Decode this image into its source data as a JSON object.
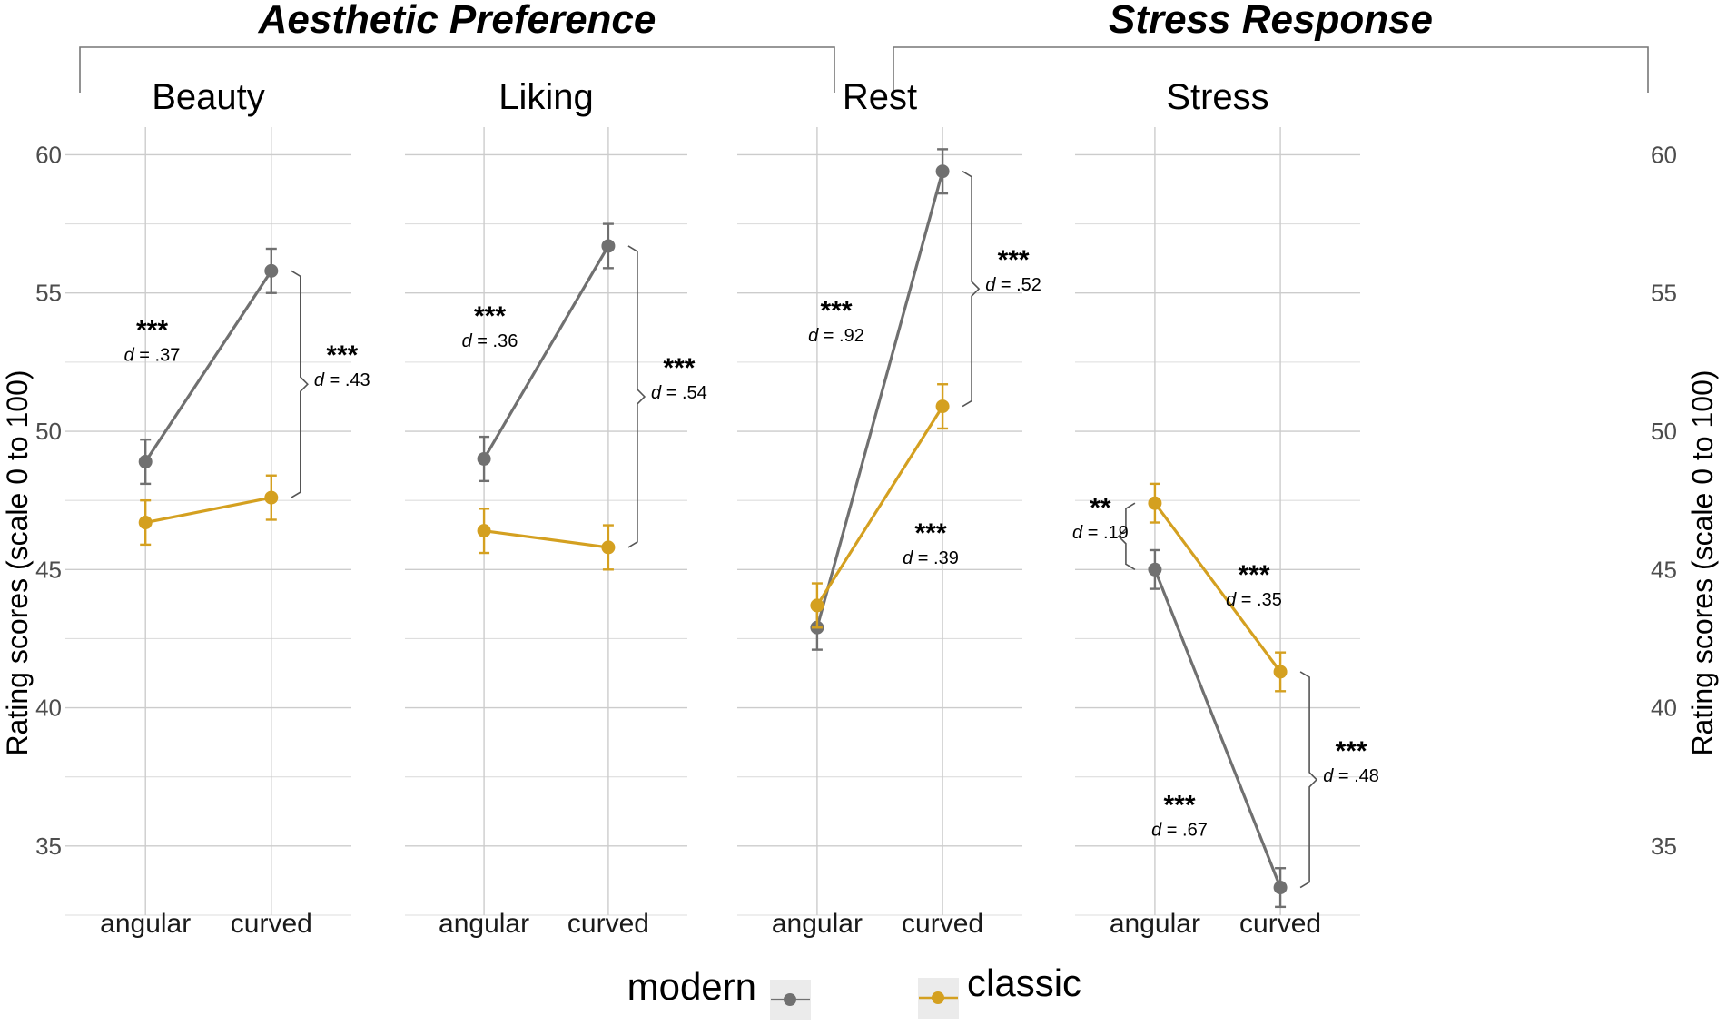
{
  "groups": [
    {
      "title": "Aesthetic Preference",
      "panels": [
        0,
        1
      ]
    },
    {
      "title": "Stress Response",
      "panels": [
        2,
        3
      ]
    }
  ],
  "colors": {
    "modern": "#707070",
    "classic": "#d4a020"
  },
  "legend": {
    "modern": "modern",
    "classic": "classic"
  },
  "chart_data": {
    "type": "line",
    "ylabel": "Rating scores (scale 0 to 100)",
    "yticks": [
      "35",
      "40",
      "45",
      "50",
      "55",
      "60"
    ],
    "ylim": [
      32.5,
      61
    ],
    "categories": [
      "angular",
      "curved"
    ],
    "panels": [
      {
        "title": "Beauty",
        "series": [
          {
            "name": "modern",
            "values": [
              48.9,
              55.8
            ],
            "err": [
              0.8,
              0.8
            ]
          },
          {
            "name": "classic",
            "values": [
              46.7,
              47.6
            ],
            "err": [
              0.8,
              0.8
            ]
          }
        ],
        "annotations": [
          {
            "stars": "***",
            "d": ".37",
            "d_prefix": "d",
            "kind": "slope",
            "series": "modern"
          },
          {
            "stars": "***",
            "d": ".43",
            "d_prefix": "d",
            "kind": "bracket",
            "category": "curved"
          }
        ]
      },
      {
        "title": "Liking",
        "series": [
          {
            "name": "modern",
            "values": [
              49.0,
              56.7
            ],
            "err": [
              0.8,
              0.8
            ]
          },
          {
            "name": "classic",
            "values": [
              46.4,
              45.8
            ],
            "err": [
              0.8,
              0.8
            ]
          }
        ],
        "annotations": [
          {
            "stars": "***",
            "d": ".36",
            "d_prefix": "d",
            "kind": "slope",
            "series": "modern"
          },
          {
            "stars": "***",
            "d": ".54",
            "d_prefix": "d",
            "kind": "bracket",
            "category": "curved"
          }
        ]
      },
      {
        "title": "Rest",
        "series": [
          {
            "name": "modern",
            "values": [
              42.9,
              59.4
            ],
            "err": [
              0.8,
              0.8
            ]
          },
          {
            "name": "classic",
            "values": [
              43.7,
              50.9
            ],
            "err": [
              0.8,
              0.8
            ]
          }
        ],
        "annotations": [
          {
            "stars": "***",
            "d": ".92",
            "d_prefix": "d",
            "kind": "slope",
            "series": "modern"
          },
          {
            "stars": "***",
            "d": ".39",
            "d_prefix": "d",
            "kind": "slope",
            "series": "classic"
          },
          {
            "stars": "***",
            "d": ".52",
            "d_prefix": "d",
            "kind": "bracket",
            "category": "curved"
          }
        ]
      },
      {
        "title": "Stress",
        "series": [
          {
            "name": "modern",
            "values": [
              45.0,
              33.5
            ],
            "err": [
              0.7,
              0.7
            ]
          },
          {
            "name": "classic",
            "values": [
              47.4,
              41.3
            ],
            "err": [
              0.7,
              0.7
            ]
          }
        ],
        "annotations": [
          {
            "stars": "**",
            "d": ".19",
            "d_prefix": "d",
            "kind": "bracket",
            "category": "angular"
          },
          {
            "stars": "***",
            "d": ".35",
            "d_prefix": "d",
            "kind": "slope",
            "series": "classic"
          },
          {
            "stars": "***",
            "d": ".67",
            "d_prefix": "d",
            "kind": "slope",
            "series": "modern"
          },
          {
            "stars": "***",
            "d": ".48",
            "d_prefix": "d",
            "kind": "bracket",
            "category": "curved"
          }
        ]
      }
    ]
  }
}
